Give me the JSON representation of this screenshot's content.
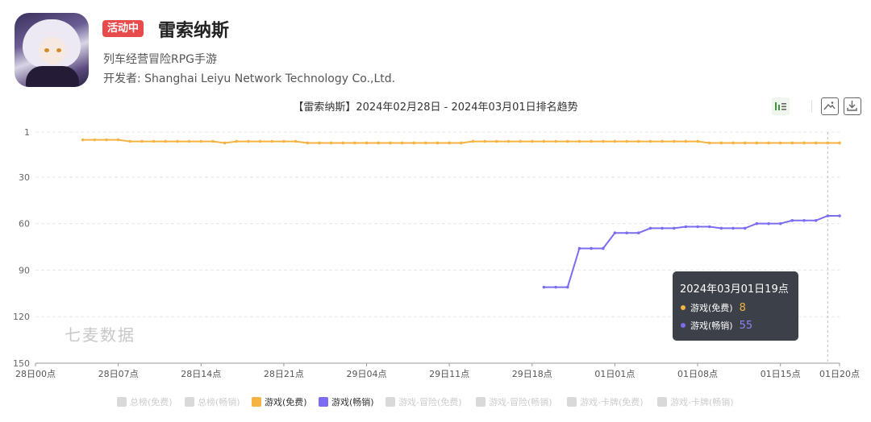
{
  "app": {
    "status_badge": "活动中",
    "name": "雷索纳斯",
    "category": "列车经营冒险RPG手游",
    "developer": "开发者: Shanghai Leiyu Network Technology Co.,Ltd."
  },
  "watermark": "七麦数据",
  "tooltip": {
    "title": "2024年03月01日19点",
    "rows": [
      {
        "label": "游戏(免费)",
        "value": "8",
        "color": "#f5b342"
      },
      {
        "label": "游戏(畅销)",
        "value": "55",
        "color": "#7b6cf0"
      }
    ]
  },
  "legend": [
    {
      "label": "总榜(免费)",
      "active": false,
      "color": "#d9d9d9"
    },
    {
      "label": "总榜(畅销)",
      "active": false,
      "color": "#d9d9d9"
    },
    {
      "label": "游戏(免费)",
      "active": true,
      "color": "#f5b342"
    },
    {
      "label": "游戏(畅销)",
      "active": true,
      "color": "#7b6cf0"
    },
    {
      "label": "游戏-冒险(免费)",
      "active": false,
      "color": "#d9d9d9"
    },
    {
      "label": "游戏-冒险(畅销)",
      "active": false,
      "color": "#d9d9d9"
    },
    {
      "label": "游戏-卡牌(免费)",
      "active": false,
      "color": "#d9d9d9"
    },
    {
      "label": "游戏-卡牌(畅销)",
      "active": false,
      "color": "#d9d9d9"
    }
  ],
  "chart_data": {
    "type": "line",
    "title": "【雷索纳斯】2024年02月28日 - 2024年03月01日排名趋势",
    "y_reversed": true,
    "ylim": [
      1,
      150
    ],
    "y_ticks": [
      "1",
      "30",
      "60",
      "90",
      "120",
      "150"
    ],
    "x_ticks": [
      "28日00点",
      "28日07点",
      "28日14点",
      "28日21点",
      "29日04点",
      "29日11点",
      "29日18点",
      "01日01点",
      "01日08点",
      "01日15点",
      "01日20点"
    ],
    "x_start_hour": 0,
    "x_end_hour": 68,
    "grid": true,
    "series": [
      {
        "name": "游戏(免费)",
        "color": "#f5b342",
        "points": [
          [
            4,
            6
          ],
          [
            5,
            6
          ],
          [
            6,
            6
          ],
          [
            7,
            6
          ],
          [
            8,
            7
          ],
          [
            9,
            7
          ],
          [
            10,
            7
          ],
          [
            11,
            7
          ],
          [
            12,
            7
          ],
          [
            13,
            7
          ],
          [
            14,
            7
          ],
          [
            15,
            7
          ],
          [
            16,
            8
          ],
          [
            17,
            7
          ],
          [
            18,
            7
          ],
          [
            19,
            7
          ],
          [
            20,
            7
          ],
          [
            21,
            7
          ],
          [
            22,
            7
          ],
          [
            23,
            8
          ],
          [
            24,
            8
          ],
          [
            25,
            8
          ],
          [
            26,
            8
          ],
          [
            27,
            8
          ],
          [
            28,
            8
          ],
          [
            29,
            8
          ],
          [
            30,
            8
          ],
          [
            31,
            8
          ],
          [
            32,
            8
          ],
          [
            33,
            8
          ],
          [
            34,
            8
          ],
          [
            35,
            8
          ],
          [
            36,
            8
          ],
          [
            37,
            7
          ],
          [
            38,
            7
          ],
          [
            39,
            7
          ],
          [
            40,
            7
          ],
          [
            41,
            7
          ],
          [
            42,
            7
          ],
          [
            43,
            7
          ],
          [
            44,
            7
          ],
          [
            45,
            7
          ],
          [
            46,
            7
          ],
          [
            47,
            7
          ],
          [
            48,
            7
          ],
          [
            49,
            7
          ],
          [
            50,
            7
          ],
          [
            51,
            7
          ],
          [
            52,
            7
          ],
          [
            53,
            7
          ],
          [
            54,
            7
          ],
          [
            55,
            7
          ],
          [
            56,
            7
          ],
          [
            57,
            8
          ],
          [
            58,
            8
          ],
          [
            59,
            8
          ],
          [
            60,
            8
          ],
          [
            61,
            8
          ],
          [
            62,
            8
          ],
          [
            63,
            8
          ],
          [
            64,
            8
          ],
          [
            65,
            8
          ],
          [
            66,
            8
          ],
          [
            67,
            8
          ],
          [
            68,
            8
          ]
        ]
      },
      {
        "name": "游戏(畅销)",
        "color": "#7b6cf0",
        "points": [
          [
            43,
            101
          ],
          [
            44,
            101
          ],
          [
            45,
            101
          ],
          [
            46,
            76
          ],
          [
            47,
            76
          ],
          [
            48,
            76
          ],
          [
            49,
            66
          ],
          [
            50,
            66
          ],
          [
            51,
            66
          ],
          [
            52,
            63
          ],
          [
            53,
            63
          ],
          [
            54,
            63
          ],
          [
            55,
            62
          ],
          [
            56,
            62
          ],
          [
            57,
            62
          ],
          [
            58,
            63
          ],
          [
            59,
            63
          ],
          [
            60,
            63
          ],
          [
            61,
            60
          ],
          [
            62,
            60
          ],
          [
            63,
            60
          ],
          [
            64,
            58
          ],
          [
            65,
            58
          ],
          [
            66,
            58
          ],
          [
            67,
            55
          ],
          [
            68,
            55
          ]
        ]
      }
    ],
    "highlight_hour": 67
  }
}
